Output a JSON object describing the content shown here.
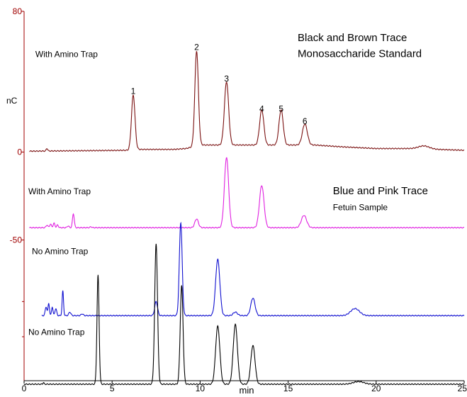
{
  "chart_data": {
    "type": "line",
    "xlabel": "min",
    "ylabel": "nC",
    "xlim": [
      0,
      25
    ],
    "ylim": [
      -130,
      80
    ],
    "x_ticks": [
      0,
      5,
      10,
      15,
      20,
      25
    ],
    "y_ticks": [
      80,
      0,
      -50
    ],
    "axis_color": "#a00000",
    "trace_width": 1.1,
    "annotations": [
      {
        "text": "With Amino Trap",
        "x": 0.4,
        "y": 54
      },
      {
        "text": "Black and Brown Trace",
        "x": 15.3,
        "y": 63
      },
      {
        "text": "Monosaccharide Standard",
        "x": 15.3,
        "y": 54
      },
      {
        "text": "With Amino Trap",
        "x": 0.0,
        "y": -24
      },
      {
        "text": "Blue and Pink Trace",
        "x": 17.3,
        "y": -24
      },
      {
        "text": "Fetuin Sample",
        "x": 17.3,
        "y": -33
      },
      {
        "text": "No Amino Trap",
        "x": 0.2,
        "y": -58
      },
      {
        "text": "No Amino Trap",
        "x": 0.0,
        "y": -104
      }
    ],
    "peak_labels": [
      {
        "text": "1",
        "x": 6.2,
        "y": 33
      },
      {
        "text": "2",
        "x": 9.8,
        "y": 58
      },
      {
        "text": "3",
        "x": 11.5,
        "y": 40
      },
      {
        "text": "4",
        "x": 13.5,
        "y": 23
      },
      {
        "text": "5",
        "x": 14.6,
        "y": 23
      },
      {
        "text": "6",
        "x": 15.95,
        "y": 16
      }
    ],
    "series": [
      {
        "color": "#7a1010",
        "baseline": 0,
        "points": [
          [
            0.3,
            0.5
          ],
          [
            5.9,
            1
          ],
          [
            6.3,
            1.5
          ],
          [
            7,
            1.5
          ],
          [
            8,
            1.5
          ],
          [
            8.5,
            1.5
          ],
          [
            9.2,
            2
          ],
          [
            10,
            4
          ],
          [
            10.6,
            4
          ],
          [
            11.7,
            4
          ],
          [
            12.5,
            4
          ],
          [
            13,
            4
          ],
          [
            14,
            4
          ],
          [
            14.5,
            4
          ],
          [
            15,
            4
          ],
          [
            15.5,
            4
          ],
          [
            16.5,
            4
          ],
          [
            18,
            3
          ],
          [
            20,
            2
          ],
          [
            22,
            2
          ],
          [
            22.8,
            2
          ],
          [
            23.5,
            1.5
          ],
          [
            25,
            1
          ]
        ],
        "peaks": [
          {
            "x": 1.3,
            "h": 1.5,
            "w": 0.04
          },
          {
            "x": 6.2,
            "h": 31,
            "w": 0.1
          },
          {
            "x": 9.8,
            "h": 54,
            "w": 0.1
          },
          {
            "x": 11.5,
            "h": 36,
            "w": 0.12
          },
          {
            "x": 13.5,
            "h": 20,
            "w": 0.12
          },
          {
            "x": 14.6,
            "h": 20,
            "w": 0.12
          },
          {
            "x": 15.95,
            "h": 12,
            "w": 0.14
          },
          {
            "x": 22.7,
            "h": 1.5,
            "w": 0.3
          }
        ]
      },
      {
        "color": "#e020e0",
        "baseline": -43,
        "points": [
          [
            0.3,
            -43
          ],
          [
            25,
            -43
          ]
        ],
        "peaks": [
          {
            "x": 1.3,
            "h": 1.5,
            "w": 0.05
          },
          {
            "x": 1.5,
            "h": 2,
            "w": 0.05
          },
          {
            "x": 1.7,
            "h": 2.5,
            "w": 0.05
          },
          {
            "x": 1.9,
            "h": 1.5,
            "w": 0.05
          },
          {
            "x": 2.5,
            "h": 1,
            "w": 0.05
          },
          {
            "x": 2.8,
            "h": 8,
            "w": 0.05
          },
          {
            "x": 3.8,
            "h": 0.5,
            "w": 0.05
          },
          {
            "x": 9.8,
            "h": 5,
            "w": 0.1
          },
          {
            "x": 11.5,
            "h": 40,
            "w": 0.12
          },
          {
            "x": 13.5,
            "h": 24,
            "w": 0.13
          },
          {
            "x": 15.9,
            "h": 7,
            "w": 0.15
          }
        ]
      },
      {
        "color": "#1010d0",
        "baseline": -93,
        "points": [
          [
            1.0,
            -93
          ],
          [
            25,
            -93
          ]
        ],
        "peaks": [
          {
            "x": 1.25,
            "h": 5,
            "w": 0.05
          },
          {
            "x": 1.4,
            "h": 7,
            "w": 0.04
          },
          {
            "x": 1.6,
            "h": 5,
            "w": 0.04
          },
          {
            "x": 1.8,
            "h": 4,
            "w": 0.05
          },
          {
            "x": 2.2,
            "h": 14,
            "w": 0.04
          },
          {
            "x": 2.6,
            "h": 2,
            "w": 0.06
          },
          {
            "x": 3.3,
            "h": 1,
            "w": 0.06
          },
          {
            "x": 7.5,
            "h": 8,
            "w": 0.08
          },
          {
            "x": 8.9,
            "h": 53,
            "w": 0.08
          },
          {
            "x": 11.0,
            "h": 32,
            "w": 0.12
          },
          {
            "x": 12.0,
            "h": 2,
            "w": 0.12
          },
          {
            "x": 13.0,
            "h": 10,
            "w": 0.12
          },
          {
            "x": 18.8,
            "h": 4,
            "w": 0.25
          }
        ]
      },
      {
        "color": "#000000",
        "baseline": -132,
        "points": [
          [
            0,
            -132
          ],
          [
            25,
            -132
          ]
        ],
        "peaks": [
          {
            "x": 1.1,
            "h": 1,
            "w": 0.03
          },
          {
            "x": 4.2,
            "h": 62,
            "w": 0.06
          },
          {
            "x": 7.5,
            "h": 80,
            "w": 0.08
          },
          {
            "x": 8.95,
            "h": 56,
            "w": 0.08
          },
          {
            "x": 11.0,
            "h": 33,
            "w": 0.12
          },
          {
            "x": 12.0,
            "h": 34,
            "w": 0.12
          },
          {
            "x": 13.0,
            "h": 22,
            "w": 0.12
          },
          {
            "x": 19.0,
            "h": 1.5,
            "w": 0.3
          }
        ]
      }
    ]
  }
}
